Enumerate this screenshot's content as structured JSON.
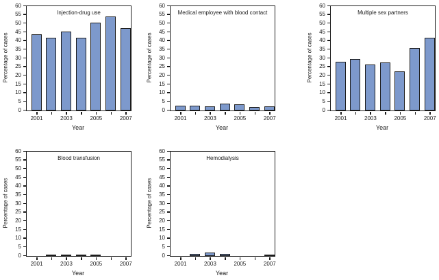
{
  "figure": {
    "background": "#ffffff",
    "rows": 2,
    "cols": 3,
    "description_title": ""
  },
  "colors": {
    "bar_fill": "#7d99cc",
    "bar_border": "#1c1c1c",
    "axis": "#1a1a1a",
    "text": "#1a1a1a"
  },
  "chart_data": [
    {
      "type": "bar",
      "title": "Injection-drug use",
      "xlabel": "Year",
      "ylabel": "Percentage of cases",
      "ylim": [
        0,
        60
      ],
      "ytick_step": 5,
      "grid": false,
      "legend": "none",
      "categories": [
        "2001",
        "2002",
        "2003",
        "2004",
        "2005",
        "2006",
        "2007"
      ],
      "x_ticks_labeled": [
        "2001",
        "2003",
        "2005",
        "2007"
      ],
      "values": [
        44,
        42,
        45.5,
        42,
        50.5,
        54,
        47.5
      ]
    },
    {
      "type": "bar",
      "title": "Medical employee with blood contact",
      "xlabel": "Year",
      "ylabel": "Percentage of cases",
      "ylim": [
        0,
        60
      ],
      "ytick_step": 5,
      "grid": false,
      "legend": "none",
      "categories": [
        "2001",
        "2002",
        "2003",
        "2004",
        "2005",
        "2006",
        "2007"
      ],
      "x_ticks_labeled": [
        "2001",
        "2003",
        "2005",
        "2007"
      ],
      "values": [
        2.7,
        2.7,
        2.4,
        4,
        3.4,
        1.8,
        2.4
      ]
    },
    {
      "type": "bar",
      "title": "Multiple sex partners",
      "xlabel": "Year",
      "ylabel": "Percentage of cases",
      "ylim": [
        0,
        60
      ],
      "ytick_step": 5,
      "grid": false,
      "legend": "none",
      "categories": [
        "2001",
        "2002",
        "2003",
        "2004",
        "2005",
        "2006",
        "2007"
      ],
      "x_ticks_labeled": [
        "2001",
        "2003",
        "2005",
        "2007"
      ],
      "values": [
        28,
        29.5,
        26.5,
        27.5,
        22.5,
        36,
        42
      ]
    },
    {
      "type": "bar",
      "title": "Blood transfusion",
      "xlabel": "Year",
      "ylabel": "Percentage of cases",
      "ylim": [
        0,
        60
      ],
      "ytick_step": 5,
      "grid": false,
      "legend": "none",
      "categories": [
        "2001",
        "2002",
        "2003",
        "2004",
        "2005",
        "2006",
        "2007"
      ],
      "x_ticks_labeled": [
        "2001",
        "2003",
        "2005",
        "2007"
      ],
      "values": [
        0,
        0.7,
        0.7,
        0.7,
        0.7,
        0,
        0
      ]
    },
    {
      "type": "bar",
      "title": "Hemodialysis",
      "xlabel": "Year",
      "ylabel": "Percentage of cases",
      "ylim": [
        0,
        60
      ],
      "ytick_step": 5,
      "grid": false,
      "legend": "none",
      "categories": [
        "2001",
        "2002",
        "2003",
        "2004",
        "2005",
        "2006",
        "2007"
      ],
      "x_ticks_labeled": [
        "2001",
        "2003",
        "2005",
        "2007"
      ],
      "values": [
        0,
        1,
        1.8,
        1,
        0,
        0,
        0.8
      ]
    }
  ]
}
